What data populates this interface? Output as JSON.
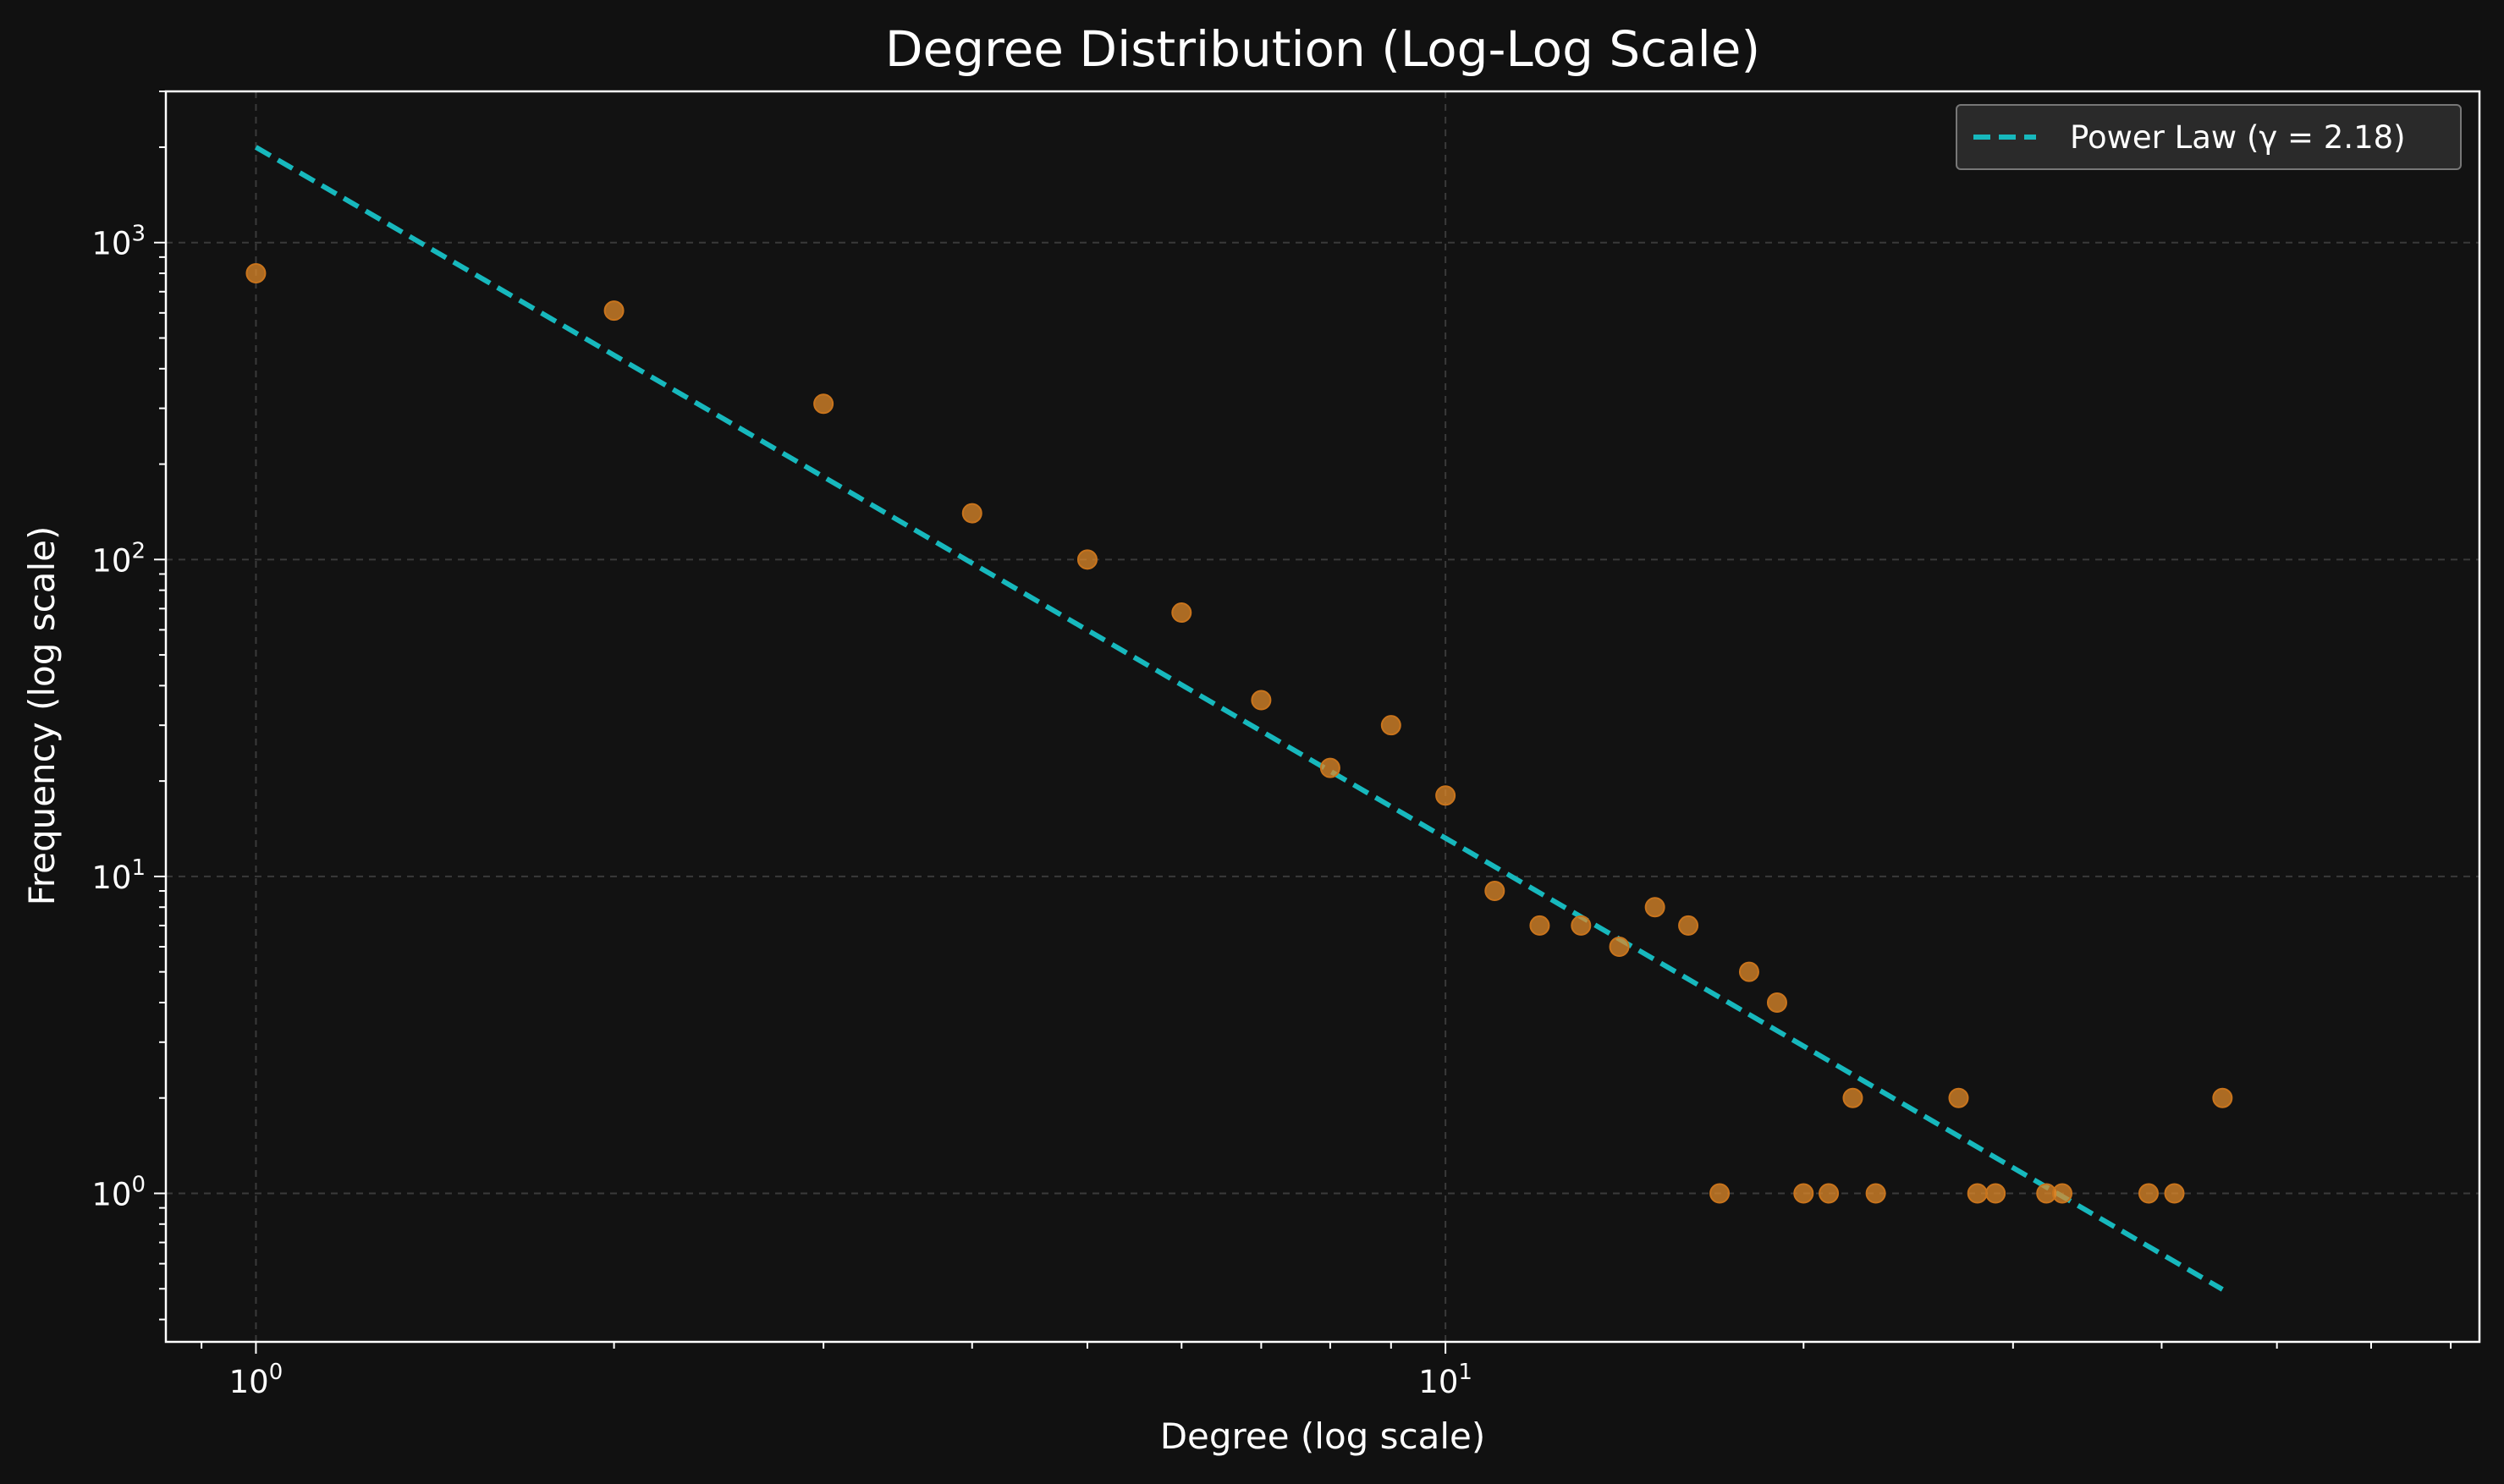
{
  "chart_data": {
    "type": "scatter",
    "title": "Degree Distribution (Log-Log Scale)",
    "xlabel": "Degree (log scale)",
    "ylabel": "Frequency (log scale)",
    "x_scale": "log",
    "y_scale": "log",
    "xlim": [
      0.84,
      74
    ],
    "ylim": [
      0.34,
      3000
    ],
    "grid": true,
    "legend_position": "top-right",
    "x_ticks": [
      {
        "base": "10",
        "exp": "0",
        "value": 1
      },
      {
        "base": "10",
        "exp": "1",
        "value": 10
      }
    ],
    "y_ticks": [
      {
        "base": "10",
        "exp": "0",
        "value": 1
      },
      {
        "base": "10",
        "exp": "1",
        "value": 10
      },
      {
        "base": "10",
        "exp": "2",
        "value": 100
      },
      {
        "base": "10",
        "exp": "3",
        "value": 1000
      }
    ],
    "series": [
      {
        "kind": "scatter",
        "color": "#e08a2a",
        "points": [
          [
            1,
            800
          ],
          [
            2,
            610
          ],
          [
            3,
            310
          ],
          [
            4,
            140
          ],
          [
            5,
            100
          ],
          [
            6,
            68
          ],
          [
            7,
            36
          ],
          [
            8,
            22
          ],
          [
            9,
            30
          ],
          [
            10,
            18
          ],
          [
            11,
            9
          ],
          [
            12,
            7
          ],
          [
            13,
            7
          ],
          [
            14,
            6
          ],
          [
            15,
            8
          ],
          [
            16,
            7
          ],
          [
            17,
            1
          ],
          [
            18,
            5
          ],
          [
            19,
            4
          ],
          [
            20,
            1
          ],
          [
            21,
            1
          ],
          [
            22,
            2
          ],
          [
            23,
            1
          ],
          [
            27,
            2
          ],
          [
            28,
            1
          ],
          [
            29,
            1
          ],
          [
            32,
            1
          ],
          [
            33,
            1
          ],
          [
            39,
            1
          ],
          [
            41,
            1
          ],
          [
            45,
            2
          ]
        ]
      },
      {
        "kind": "line",
        "name": "Power Law (γ = 2.18)",
        "color": "#17b8bd",
        "dashed": true,
        "fit": {
          "prefactor": 2000,
          "exponent": -2.18,
          "x_range": [
            1,
            45
          ]
        }
      }
    ]
  },
  "colors": {
    "background": "#111111",
    "plot_background": "#121212",
    "axis": "#ffffff",
    "grid": "#3a3a3a",
    "scatter": "#e08a2a",
    "fit_line": "#17b8bd"
  }
}
